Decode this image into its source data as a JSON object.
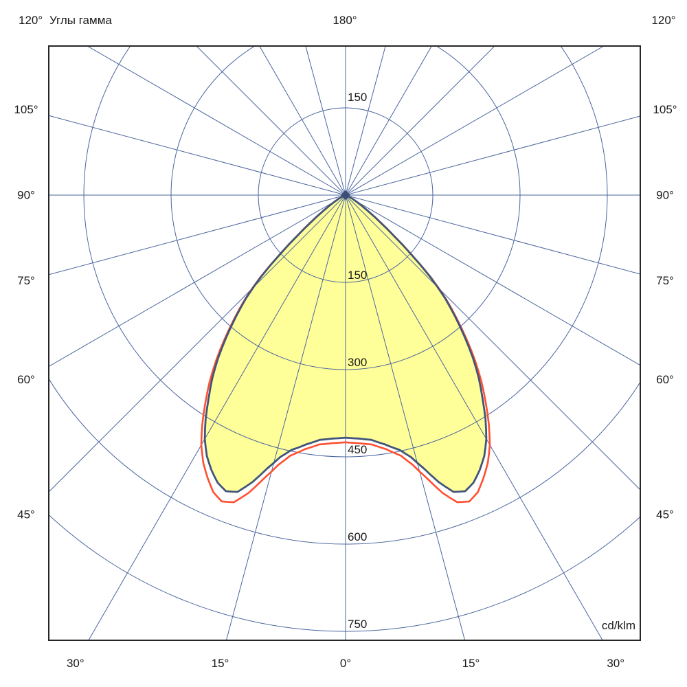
{
  "header": {
    "top_left_angle": "120°",
    "title": "Углы гамма",
    "top_center_angle": "180°",
    "top_right_angle": "120°"
  },
  "chart_data": {
    "type": "polar",
    "title": "Углы гамма",
    "units": "cd/klm",
    "gamma_zero_direction": "down",
    "symmetric_about_vertical": true,
    "angle_grid_step_deg": 15,
    "radial_range": [
      0,
      765
    ],
    "radial_ticks": [
      150,
      300,
      450,
      600,
      750
    ],
    "radial_labels": [
      {
        "text": "150",
        "value": 150,
        "dir": "up"
      },
      {
        "text": "150",
        "value": 150,
        "dir": "down"
      },
      {
        "text": "300",
        "value": 300,
        "dir": "down"
      },
      {
        "text": "450",
        "value": 450,
        "dir": "down"
      },
      {
        "text": "600",
        "value": 600,
        "dir": "down"
      },
      {
        "text": "750",
        "value": 750,
        "dir": "down"
      }
    ],
    "left_labels": [
      {
        "text": "105°",
        "gamma": 105
      },
      {
        "text": "90°",
        "gamma": 90
      },
      {
        "text": "75°",
        "gamma": 75
      },
      {
        "text": "60°",
        "gamma": 60
      },
      {
        "text": "45°",
        "gamma": 45
      }
    ],
    "right_labels": [
      {
        "text": "105°",
        "gamma": 105
      },
      {
        "text": "90°",
        "gamma": 90
      },
      {
        "text": "75°",
        "gamma": 75
      },
      {
        "text": "60°",
        "gamma": 60
      },
      {
        "text": "45°",
        "gamma": 45
      }
    ],
    "bottom_labels": [
      {
        "text": "30°",
        "gamma": 30,
        "side": -1
      },
      {
        "text": "15°",
        "gamma": 15,
        "side": -1
      },
      {
        "text": "0°",
        "gamma": 0,
        "side": 0
      },
      {
        "text": "15°",
        "gamma": 15,
        "side": 1
      },
      {
        "text": "30°",
        "gamma": 30,
        "side": 1
      }
    ],
    "unit_label": "cd/klm",
    "colors": {
      "background": "#FFFFFF",
      "grid": "#4A649E",
      "box_border": "#262626",
      "fill": "#FFFF99",
      "outer_curve": "#FF4F30",
      "inner_curve": "#41557A",
      "text": "#1A1A1A"
    },
    "series": [
      {
        "name": "outer-envelope",
        "color": "#FF4F30",
        "points_gamma_cd_per_klm": [
          [
            0,
            425
          ],
          [
            3,
            427
          ],
          [
            6,
            431
          ],
          [
            9,
            442
          ],
          [
            12,
            458
          ],
          [
            14,
            478
          ],
          [
            16,
            506
          ],
          [
            18,
            538
          ],
          [
            20,
            562
          ],
          [
            22,
            568
          ],
          [
            24,
            559
          ],
          [
            26,
            541
          ],
          [
            28,
            521
          ],
          [
            30,
            496
          ],
          [
            32,
            465
          ],
          [
            34,
            431
          ],
          [
            36,
            398
          ],
          [
            38,
            362
          ],
          [
            40,
            324
          ],
          [
            42,
            286
          ],
          [
            44,
            249
          ],
          [
            46,
            205
          ],
          [
            48,
            152
          ],
          [
            50,
            108
          ],
          [
            52,
            77
          ],
          [
            54,
            54
          ],
          [
            56,
            38
          ],
          [
            58,
            27
          ],
          [
            60,
            19
          ],
          [
            64,
            10
          ],
          [
            68,
            5
          ],
          [
            72,
            3
          ],
          [
            78,
            1
          ],
          [
            84,
            0.5
          ],
          [
            90,
            0
          ]
        ]
      },
      {
        "name": "inner-envelope",
        "color": "#41557A",
        "fill": "#FFFF99",
        "points_gamma_cd_per_klm": [
          [
            0,
            417
          ],
          [
            3,
            419
          ],
          [
            6,
            423
          ],
          [
            9,
            434
          ],
          [
            12,
            448
          ],
          [
            14,
            464
          ],
          [
            16,
            489
          ],
          [
            18,
            519
          ],
          [
            20,
            543
          ],
          [
            22,
            549
          ],
          [
            24,
            541
          ],
          [
            26,
            526
          ],
          [
            28,
            508
          ],
          [
            30,
            484
          ],
          [
            32,
            454
          ],
          [
            34,
            421
          ],
          [
            36,
            390
          ],
          [
            38,
            356
          ],
          [
            40,
            319
          ],
          [
            42,
            282
          ],
          [
            44,
            246
          ],
          [
            46,
            202
          ],
          [
            48,
            150
          ],
          [
            50,
            106
          ],
          [
            52,
            75
          ],
          [
            54,
            53
          ],
          [
            56,
            37
          ],
          [
            58,
            26
          ],
          [
            60,
            18
          ],
          [
            64,
            9
          ],
          [
            68,
            4
          ],
          [
            72,
            2
          ],
          [
            78,
            1
          ],
          [
            84,
            0.4
          ],
          [
            90,
            0
          ]
        ]
      }
    ]
  }
}
